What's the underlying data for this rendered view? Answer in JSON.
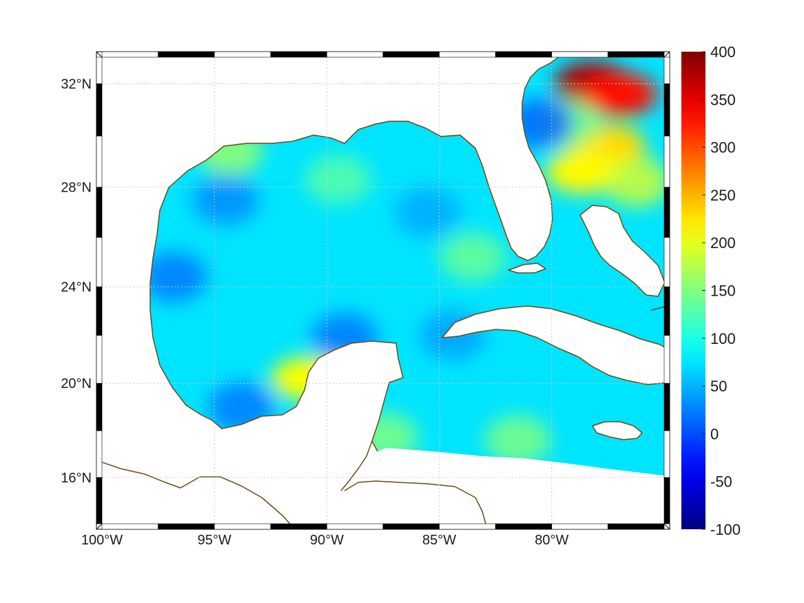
{
  "map": {
    "projection": "Mercator",
    "extent": {
      "lon": [
        -100,
        -75
      ],
      "lat": [
        14,
        33
      ]
    },
    "land_fill": "#ffffff",
    "coastline_color": "#6b4a10",
    "grid": "dotted",
    "lon_ticks": [
      {
        "value": -100,
        "label": "100°W"
      },
      {
        "value": -95,
        "label": "95°W"
      },
      {
        "value": -90,
        "label": "90°W"
      },
      {
        "value": -85,
        "label": "85°W"
      },
      {
        "value": -80,
        "label": "80°W"
      }
    ],
    "lat_ticks": [
      {
        "value": 32,
        "label": "32°N"
      },
      {
        "value": 28,
        "label": "28°N"
      },
      {
        "value": 24,
        "label": "24°N"
      },
      {
        "value": 20,
        "label": "20°N"
      },
      {
        "value": 16,
        "label": "16°N"
      }
    ],
    "field": {
      "colormap": "jet",
      "background_value": 75,
      "features": [
        {
          "lon": -78.2,
          "lat": 32.0,
          "value": 380
        },
        {
          "lon": -77.0,
          "lat": 31.6,
          "value": 330
        },
        {
          "lon": -77.5,
          "lat": 29.6,
          "value": 230
        },
        {
          "lon": -78.6,
          "lat": 28.6,
          "value": 215
        },
        {
          "lon": -76.2,
          "lat": 28.2,
          "value": 190
        },
        {
          "lon": -79.3,
          "lat": 30.5,
          "value": 150
        },
        {
          "lon": -80.5,
          "lat": 30.5,
          "value": 10
        },
        {
          "lon": -90.8,
          "lat": 20.2,
          "value": 210
        },
        {
          "lon": -94.3,
          "lat": 29.4,
          "value": 160
        },
        {
          "lon": -89.5,
          "lat": 28.3,
          "value": 130
        },
        {
          "lon": -83.5,
          "lat": 25.2,
          "value": 140
        },
        {
          "lon": -81.5,
          "lat": 17.6,
          "value": 150
        },
        {
          "lon": -87.4,
          "lat": 17.7,
          "value": 150
        },
        {
          "lon": -96.8,
          "lat": 24.4,
          "value": 20
        },
        {
          "lon": -93.8,
          "lat": 19.0,
          "value": 20
        },
        {
          "lon": -94.5,
          "lat": 27.5,
          "value": 30
        },
        {
          "lon": -89.2,
          "lat": 21.9,
          "value": 20
        },
        {
          "lon": -84.4,
          "lat": 22.0,
          "value": 40
        },
        {
          "lon": -85.5,
          "lat": 27.0,
          "value": 45
        }
      ]
    }
  },
  "colorbar": {
    "colormap": "jet",
    "min": -100,
    "max": 400,
    "ticks": [
      "400",
      "350",
      "300",
      "250",
      "200",
      "150",
      "100",
      "50",
      "0",
      "-50",
      "-100"
    ]
  }
}
